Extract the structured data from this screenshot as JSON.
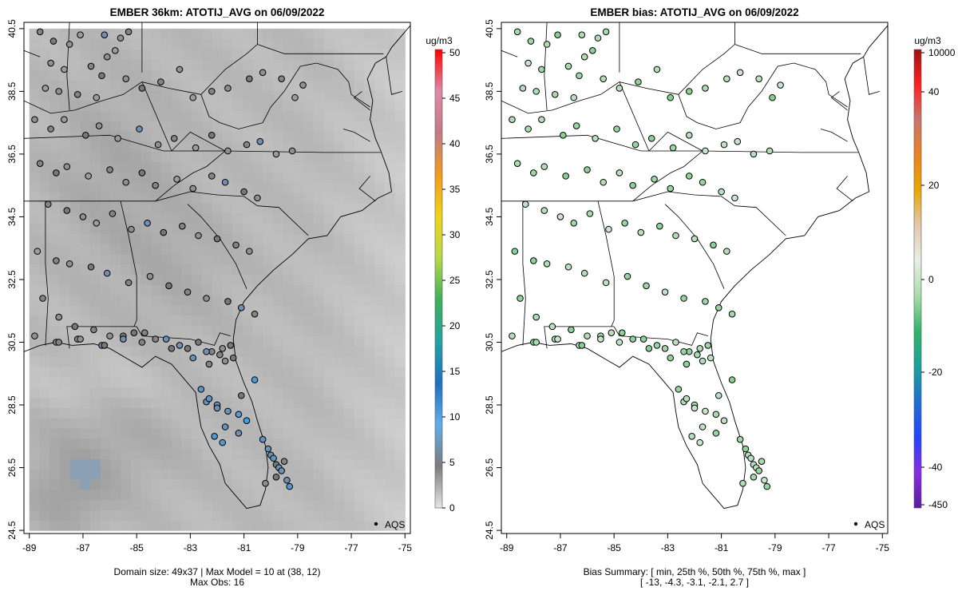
{
  "chart_data": [
    {
      "type": "scatter",
      "subtype": "map-with-gridded-field",
      "title": "EMBER 36km: ATOTIJ_AVG on 06/09/2022",
      "x_ticks": [
        "-89",
        "-87",
        "-85",
        "-83",
        "-81",
        "-79",
        "-77",
        "-75"
      ],
      "y_ticks": [
        "40.5",
        "38.5",
        "36.5",
        "34.5",
        "32.5",
        "30.5",
        "28.5",
        "26.5",
        "24.5"
      ],
      "xlim": [
        -89.2,
        -74.8
      ],
      "ylim": [
        24.4,
        40.7
      ],
      "grid": false,
      "colorbar": {
        "unit": "ug/m3",
        "ticks": [
          "0",
          "5",
          "10",
          "15",
          "20",
          "25",
          "30",
          "35",
          "40",
          "45",
          "50"
        ],
        "range": [
          0,
          50
        ],
        "colors": [
          "#e6e6e6",
          "#7c7c7c",
          "#60aee8",
          "#1f6fc2",
          "#22a3a3",
          "#3fb05a",
          "#b9d94a",
          "#f2d21a",
          "#f39a1c",
          "#c37a88",
          "#e08aa8",
          "#ff0000"
        ]
      },
      "legend": {
        "label": "AQS",
        "placement": "bottom-right"
      },
      "footer": [
        "Domain size: 49x37 | Max Model = 10 at (38, 12)",
        "Max Obs: 16"
      ],
      "points_lon": [
        -88.6,
        -88.1,
        -87.5,
        -87.1,
        -86.2,
        -85.6,
        -85.3,
        -88.2,
        -87.7,
        -86.7,
        -86.3,
        -86.1,
        -85.8,
        -88.4,
        -87.9,
        -87.2,
        -86.5,
        -85.4,
        -84.8,
        -84.1,
        -83.4,
        -82.9,
        -82.2,
        -81.6,
        -80.8,
        -80.3,
        -79.6,
        -79.1,
        -78.8,
        -88.8,
        -88.2,
        -87.7,
        -86.9,
        -86.4,
        -85.7,
        -84.9,
        -84.2,
        -83.6,
        -82.8,
        -82.2,
        -81.6,
        -80.9,
        -80.4,
        -79.8,
        -79.2,
        -88.6,
        -88.0,
        -87.6,
        -86.8,
        -86.0,
        -85.4,
        -84.8,
        -84.3,
        -83.5,
        -82.9,
        -82.2,
        -81.7,
        -81.0,
        -80.5,
        -88.3,
        -87.6,
        -87.0,
        -86.5,
        -85.9,
        -85.2,
        -84.6,
        -84.0,
        -83.3,
        -82.7,
        -82.0,
        -81.3,
        -80.8,
        -88.7,
        -88.0,
        -87.5,
        -86.7,
        -86.1,
        -85.3,
        -84.5,
        -83.8,
        -83.1,
        -82.4,
        -81.6,
        -81.1,
        -80.6,
        -88.5,
        -87.9,
        -87.3,
        -86.6,
        -86.0,
        -85.1,
        -84.3,
        -83.4,
        -82.7,
        -82.2,
        -81.8,
        -81.4,
        -88.0,
        -87.2,
        -86.3,
        -85.5,
        -84.8,
        -83.9,
        -83.1,
        -82.4,
        -81.9,
        -81.5,
        -88.8,
        -87.9,
        -87.1,
        -86.2,
        -85.5,
        -84.7,
        -83.7,
        -82.9,
        -82.3,
        -81.7,
        -81.1,
        -82.4,
        -82.0,
        -81.6,
        -81.2,
        -80.9,
        -80.6,
        -82.6,
        -82.3,
        -82.0,
        -81.7,
        -81.2,
        -80.3,
        -82.1,
        -81.8,
        -80.1,
        -80.0,
        -79.9,
        -79.8,
        -79.7,
        -79.6,
        -79.5,
        -79.8,
        -80.2,
        -79.4,
        -79.3,
        -79.6
      ],
      "points_lat": [
        40.4,
        40.1,
        40.0,
        40.3,
        40.3,
        40.2,
        40.4,
        39.4,
        39.2,
        39.3,
        39.0,
        39.6,
        39.8,
        38.6,
        38.5,
        38.4,
        38.3,
        38.9,
        38.6,
        38.8,
        39.2,
        38.3,
        38.5,
        38.6,
        38.9,
        39.1,
        38.9,
        38.3,
        38.7,
        37.6,
        37.3,
        37.6,
        37.1,
        37.4,
        37.0,
        37.3,
        36.8,
        37.0,
        36.7,
        37.1,
        36.6,
        36.8,
        36.9,
        36.5,
        36.6,
        36.2,
        35.9,
        36.1,
        35.8,
        36.0,
        35.6,
        35.9,
        35.5,
        35.7,
        35.4,
        35.8,
        35.6,
        35.3,
        35.1,
        34.9,
        34.7,
        34.5,
        34.3,
        34.6,
        34.1,
        34.3,
        34.0,
        34.2,
        33.9,
        33.8,
        33.6,
        33.4,
        33.4,
        33.1,
        33.0,
        32.9,
        32.7,
        32.4,
        32.6,
        32.3,
        32.1,
        31.9,
        31.8,
        31.6,
        31.4,
        31.9,
        31.3,
        31.0,
        30.9,
        30.7,
        30.8,
        30.6,
        30.4,
        30.5,
        30.2,
        30.3,
        30.0,
        30.5,
        30.6,
        30.4,
        30.7,
        30.5,
        30.6,
        30.3,
        30.2,
        30.1,
        30.4,
        30.7,
        30.5,
        30.6,
        30.4,
        30.6,
        30.8,
        30.3,
        30.0,
        29.8,
        29.9,
        28.8,
        28.6,
        28.5,
        28.3,
        28.2,
        28.0,
        29.3,
        29.0,
        28.7,
        28.4,
        27.8,
        27.6,
        27.4,
        27.5,
        27.3,
        27.1,
        26.9,
        26.8,
        26.6,
        26.5,
        26.4,
        26.7,
        26.2,
        26.0,
        26.1,
        25.9
      ],
      "points_value": [
        7,
        8,
        6,
        5,
        9,
        6,
        7,
        6,
        5,
        7,
        8,
        6,
        5,
        5,
        6,
        7,
        5,
        6,
        8,
        7,
        6,
        5,
        7,
        6,
        8,
        6,
        7,
        5,
        6,
        6,
        7,
        5,
        8,
        6,
        5,
        9,
        6,
        7,
        5,
        8,
        6,
        7,
        9,
        5,
        6,
        7,
        8,
        6,
        5,
        7,
        6,
        8,
        7,
        5,
        6,
        7,
        9,
        8,
        6,
        7,
        8,
        6,
        5,
        7,
        6,
        9,
        8,
        7,
        6,
        8,
        7,
        6,
        5,
        7,
        6,
        8,
        9,
        7,
        6,
        8,
        7,
        6,
        8,
        9,
        7,
        7,
        6,
        8,
        7,
        6,
        8,
        7,
        9,
        8,
        7,
        6,
        8,
        7,
        6,
        9,
        8,
        7,
        10,
        8,
        9,
        7,
        8,
        6,
        7,
        6,
        8,
        9,
        7,
        8,
        10,
        7,
        6,
        8,
        9,
        10,
        9,
        13,
        16,
        14,
        12,
        11,
        9,
        10,
        9,
        11,
        14,
        12,
        10,
        9,
        11,
        8,
        10,
        9,
        7,
        8,
        6,
        9,
        12,
        11,
        10,
        8
      ],
      "grid_field": "gridded model field (grey, 49x37 cells)"
    },
    {
      "type": "scatter",
      "subtype": "bias-map",
      "title": "EMBER bias: ATOTIJ_AVG on 06/09/2022",
      "x_ticks": [
        "-89",
        "-87",
        "-85",
        "-83",
        "-81",
        "-79",
        "-77",
        "-75"
      ],
      "y_ticks": [
        "40.5",
        "38.5",
        "36.5",
        "34.5",
        "32.5",
        "30.5",
        "28.5",
        "26.5",
        "24.5"
      ],
      "xlim": [
        -89.2,
        -74.8
      ],
      "ylim": [
        24.4,
        40.7
      ],
      "grid": false,
      "colorbar": {
        "unit": "ug/m3",
        "ticks": [
          "10000",
          "40",
          "20",
          "0",
          "-20",
          "-40",
          "-450"
        ],
        "range": [
          -450,
          10000
        ],
        "colors": [
          "#5a1ea0",
          "#8a2be2",
          "#2244ff",
          "#1e6fd0",
          "#1aa0a0",
          "#2eb36a",
          "#a8dca8",
          "#e8eee8",
          "#e6c7b0",
          "#e6a800",
          "#f08020",
          "#c9776f",
          "#ff2020",
          "#a01010"
        ]
      },
      "legend": {
        "label": "AQS",
        "placement": "bottom-right"
      },
      "footer": [
        "Bias Summary: [ min, 25th %, 50th %, 75th %, max ]",
        "[ -13,   -4.3,   -3.1,   -2.1,   2.7 ]"
      ],
      "summary": {
        "min": -13,
        "p25": -4.3,
        "p50": -3.1,
        "p75": -2.1,
        "max": 2.7
      }
    }
  ]
}
